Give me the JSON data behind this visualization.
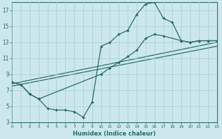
{
  "xlabel": "Humidex (Indice chaleur)",
  "bg_color": "#cce8ec",
  "grid_color": "#a8cdd3",
  "line_color": "#2a6b6b",
  "xlim": [
    0,
    23
  ],
  "ylim": [
    3,
    18
  ],
  "xticks": [
    0,
    1,
    2,
    3,
    4,
    5,
    6,
    7,
    8,
    9,
    10,
    11,
    12,
    13,
    14,
    15,
    16,
    17,
    18,
    19,
    20,
    21,
    22,
    23
  ],
  "yticks": [
    3,
    5,
    7,
    9,
    11,
    13,
    15,
    17
  ],
  "line1_x": [
    0,
    1,
    2,
    3,
    4,
    5,
    6,
    7,
    8,
    9,
    10,
    11,
    12,
    13,
    14,
    15,
    16,
    17,
    18,
    19,
    20,
    21,
    22,
    23
  ],
  "line1_y": [
    8.0,
    7.7,
    6.5,
    5.9,
    4.7,
    4.5,
    4.5,
    4.3,
    3.6,
    5.5,
    12.5,
    13.0,
    14.0,
    14.5,
    16.5,
    17.8,
    18.0,
    16.0,
    15.5,
    13.2,
    13.0,
    13.2,
    13.2,
    13.2
  ],
  "line2_x": [
    0,
    1,
    2,
    3,
    10,
    11,
    12,
    13,
    14,
    15,
    16,
    17,
    19,
    20,
    21,
    22,
    23
  ],
  "line2_y": [
    8.0,
    7.7,
    6.5,
    5.9,
    9.0,
    9.8,
    10.5,
    11.2,
    12.0,
    13.5,
    14.0,
    13.8,
    13.2,
    13.0,
    13.2,
    13.2,
    13.2
  ],
  "line3_x": [
    0,
    23
  ],
  "line3_y": [
    7.8,
    13.0
  ],
  "line4_x": [
    0,
    23
  ],
  "line4_y": [
    7.5,
    12.5
  ]
}
